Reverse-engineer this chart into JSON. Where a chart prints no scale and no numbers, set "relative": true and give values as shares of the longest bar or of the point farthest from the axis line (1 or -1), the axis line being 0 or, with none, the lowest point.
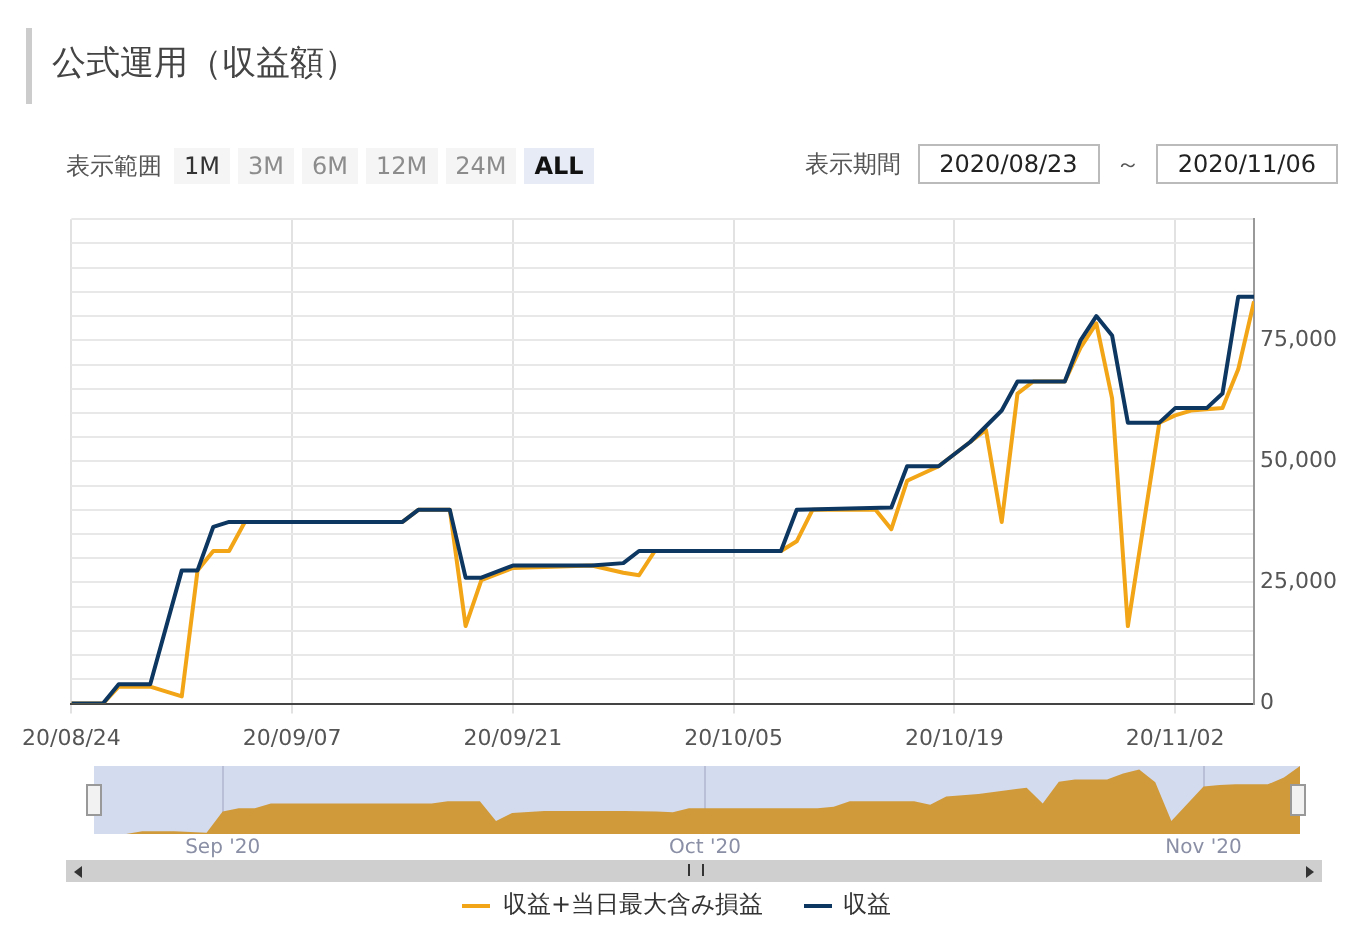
{
  "chart_data": [
    {
      "type": "line",
      "title": "公式運用（収益額）",
      "annotations": [
        "表示範囲",
        "1M",
        "3M",
        "6M",
        "12M",
        "24M",
        "ALL",
        "表示期間",
        "2020/08/23",
        "～",
        "2020/11/06"
      ],
      "series": [
        {
          "name": "収益+当日最大含み損益",
          "color": "#f2a516",
          "x": [
            "2020-08-24",
            "2020-08-26",
            "2020-08-27",
            "2020-08-29",
            "2020-08-31",
            "2020-09-01",
            "2020-09-02",
            "2020-09-03",
            "2020-09-04",
            "2020-09-14",
            "2020-09-15",
            "2020-09-17",
            "2020-09-18",
            "2020-09-19",
            "2020-09-21",
            "2020-09-26",
            "2020-09-28",
            "2020-09-29",
            "2020-09-30",
            "2020-10-08",
            "2020-10-09",
            "2020-10-10",
            "2020-10-14",
            "2020-10-15",
            "2020-10-16",
            "2020-10-18",
            "2020-10-20",
            "2020-10-21",
            "2020-10-22",
            "2020-10-23",
            "2020-10-24",
            "2020-10-26",
            "2020-10-27",
            "2020-10-28",
            "2020-10-29",
            "2020-10-30",
            "2020-11-01",
            "2020-11-02",
            "2020-11-03",
            "2020-11-05",
            "2020-11-06",
            "2020-11-07"
          ],
          "values": [
            0,
            0,
            3500,
            3500,
            1500,
            27500,
            31500,
            31500,
            37500,
            37500,
            40000,
            40000,
            16000,
            25500,
            28000,
            28500,
            27000,
            26500,
            31500,
            31500,
            33500,
            40000,
            40000,
            36000,
            46000,
            49000,
            54000,
            56500,
            37500,
            64000,
            66500,
            66500,
            73500,
            78500,
            63000,
            16000,
            58000,
            59500,
            60500,
            61000,
            69000,
            83000
          ]
        },
        {
          "name": "収益",
          "color": "#0d3660",
          "x": [
            "2020-08-24",
            "2020-08-26",
            "2020-08-27",
            "2020-08-29",
            "2020-08-31",
            "2020-09-01",
            "2020-09-02",
            "2020-09-03",
            "2020-09-14",
            "2020-09-15",
            "2020-09-17",
            "2020-09-18",
            "2020-09-19",
            "2020-09-21",
            "2020-09-26",
            "2020-09-28",
            "2020-09-29",
            "2020-10-08",
            "2020-10-09",
            "2020-10-15",
            "2020-10-16",
            "2020-10-18",
            "2020-10-20",
            "2020-10-22",
            "2020-10-23",
            "2020-10-26",
            "2020-10-27",
            "2020-10-28",
            "2020-10-29",
            "2020-10-30",
            "2020-11-01",
            "2020-11-02",
            "2020-11-04",
            "2020-11-05",
            "2020-11-06",
            "2020-11-07"
          ],
          "values": [
            0,
            0,
            4000,
            4000,
            27500,
            27500,
            36500,
            37500,
            37500,
            40000,
            40000,
            26000,
            26000,
            28500,
            28500,
            29000,
            31500,
            31500,
            40000,
            40500,
            49000,
            49000,
            54000,
            60500,
            66500,
            66500,
            75000,
            80000,
            76000,
            58000,
            58000,
            61000,
            61000,
            64000,
            84000,
            84000
          ]
        }
      ],
      "xlim": [
        "2020-08-24",
        "2020-11-07"
      ],
      "xticks": [
        {
          "value": "2020-08-24",
          "label": "20/08/24"
        },
        {
          "value": "2020-09-07",
          "label": "20/09/07"
        },
        {
          "value": "2020-09-21",
          "label": "20/09/21"
        },
        {
          "value": "2020-10-05",
          "label": "20/10/05"
        },
        {
          "value": "2020-10-19",
          "label": "20/10/19"
        },
        {
          "value": "2020-11-02",
          "label": "20/11/02"
        }
      ],
      "ylim": [
        0,
        100000
      ],
      "yticks": [
        {
          "value": 0,
          "label": "0"
        },
        {
          "value": 5000,
          "label": null
        },
        {
          "value": 10000,
          "label": null
        },
        {
          "value": 15000,
          "label": null
        },
        {
          "value": 20000,
          "label": null
        },
        {
          "value": 25000,
          "label": "25,000"
        },
        {
          "value": 30000,
          "label": null
        },
        {
          "value": 35000,
          "label": null
        },
        {
          "value": 40000,
          "label": null
        },
        {
          "value": 45000,
          "label": null
        },
        {
          "value": 50000,
          "label": "50,000"
        },
        {
          "value": 55000,
          "label": null
        },
        {
          "value": 60000,
          "label": null
        },
        {
          "value": 65000,
          "label": null
        },
        {
          "value": 70000,
          "label": null
        },
        {
          "value": 75000,
          "label": "75,000"
        },
        {
          "value": 80000,
          "label": null
        },
        {
          "value": 85000,
          "label": null
        },
        {
          "value": 90000,
          "label": null
        },
        {
          "value": 95000,
          "label": null
        },
        {
          "value": 100000,
          "label": null
        }
      ],
      "grid": true,
      "legend": "bottom",
      "marker": "none",
      "line_style": "solid"
    },
    {
      "type": "area",
      "relative": true,
      "grid": "x",
      "series": [
        {
          "color": "#d09a3b",
          "x": [
            "2020-08-24",
            "2020-08-26",
            "2020-08-27",
            "2020-08-29",
            "2020-08-31",
            "2020-09-01",
            "2020-09-02",
            "2020-09-03",
            "2020-09-04",
            "2020-09-14",
            "2020-09-15",
            "2020-09-17",
            "2020-09-18",
            "2020-09-19",
            "2020-09-21",
            "2020-09-26",
            "2020-09-28",
            "2020-09-29",
            "2020-09-30",
            "2020-10-08",
            "2020-10-09",
            "2020-10-10",
            "2020-10-14",
            "2020-10-15",
            "2020-10-16",
            "2020-10-18",
            "2020-10-20",
            "2020-10-21",
            "2020-10-22",
            "2020-10-23",
            "2020-10-24",
            "2020-10-26",
            "2020-10-27",
            "2020-10-28",
            "2020-10-29",
            "2020-10-30",
            "2020-11-01",
            "2020-11-02",
            "2020-11-03",
            "2020-11-05",
            "2020-11-06",
            "2020-11-07"
          ],
          "values": [
            0,
            0,
            0.04,
            0.04,
            0.02,
            0.33,
            0.38,
            0.38,
            0.45,
            0.45,
            0.48,
            0.48,
            0.19,
            0.31,
            0.34,
            0.34,
            0.33,
            0.32,
            0.38,
            0.38,
            0.4,
            0.48,
            0.48,
            0.43,
            0.55,
            0.59,
            0.65,
            0.68,
            0.45,
            0.77,
            0.8,
            0.8,
            0.89,
            0.95,
            0.76,
            0.19,
            0.7,
            0.72,
            0.73,
            0.73,
            0.83,
            1
          ]
        }
      ],
      "xlim": [
        "2020-08-24",
        "2020-11-07"
      ],
      "xticks": [
        {
          "value": "2020-09-01",
          "label": "Sep '20"
        },
        {
          "value": "2020-10-01",
          "label": "Oct '20"
        },
        {
          "value": "2020-11-01",
          "label": "Nov '20"
        }
      ],
      "marker": "none"
    }
  ]
}
